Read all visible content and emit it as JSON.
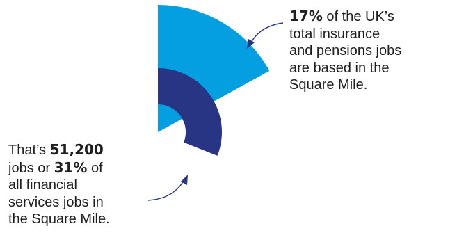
{
  "chart_data": {
    "type": "pie",
    "title": "",
    "series": [
      {
        "name": "",
        "value": 17,
        "unit": "%",
        "color": "#049fe1"
      },
      {
        "name": "",
        "value": 31,
        "unit": "%",
        "color": "#283584"
      }
    ]
  },
  "callout_right": {
    "highlight": "17%",
    "line1_rest": " of the UK’s",
    "line2": "total insurance",
    "line3": "and pensions jobs",
    "line4": "are based in the",
    "line5": "Square Mile."
  },
  "callout_left": {
    "line1_start": "That’s ",
    "jobs_count": "51,200",
    "line2_start": "jobs or ",
    "highlight": "31%",
    "line2_rest": " of",
    "line3": "all financial",
    "line4": "services jobs in",
    "line5": "the Square Mile."
  },
  "colors": {
    "outer_wedge": "#049fe1",
    "inner_wedge": "#283584",
    "arrow": "#283584",
    "text": "#1f1f1f"
  }
}
